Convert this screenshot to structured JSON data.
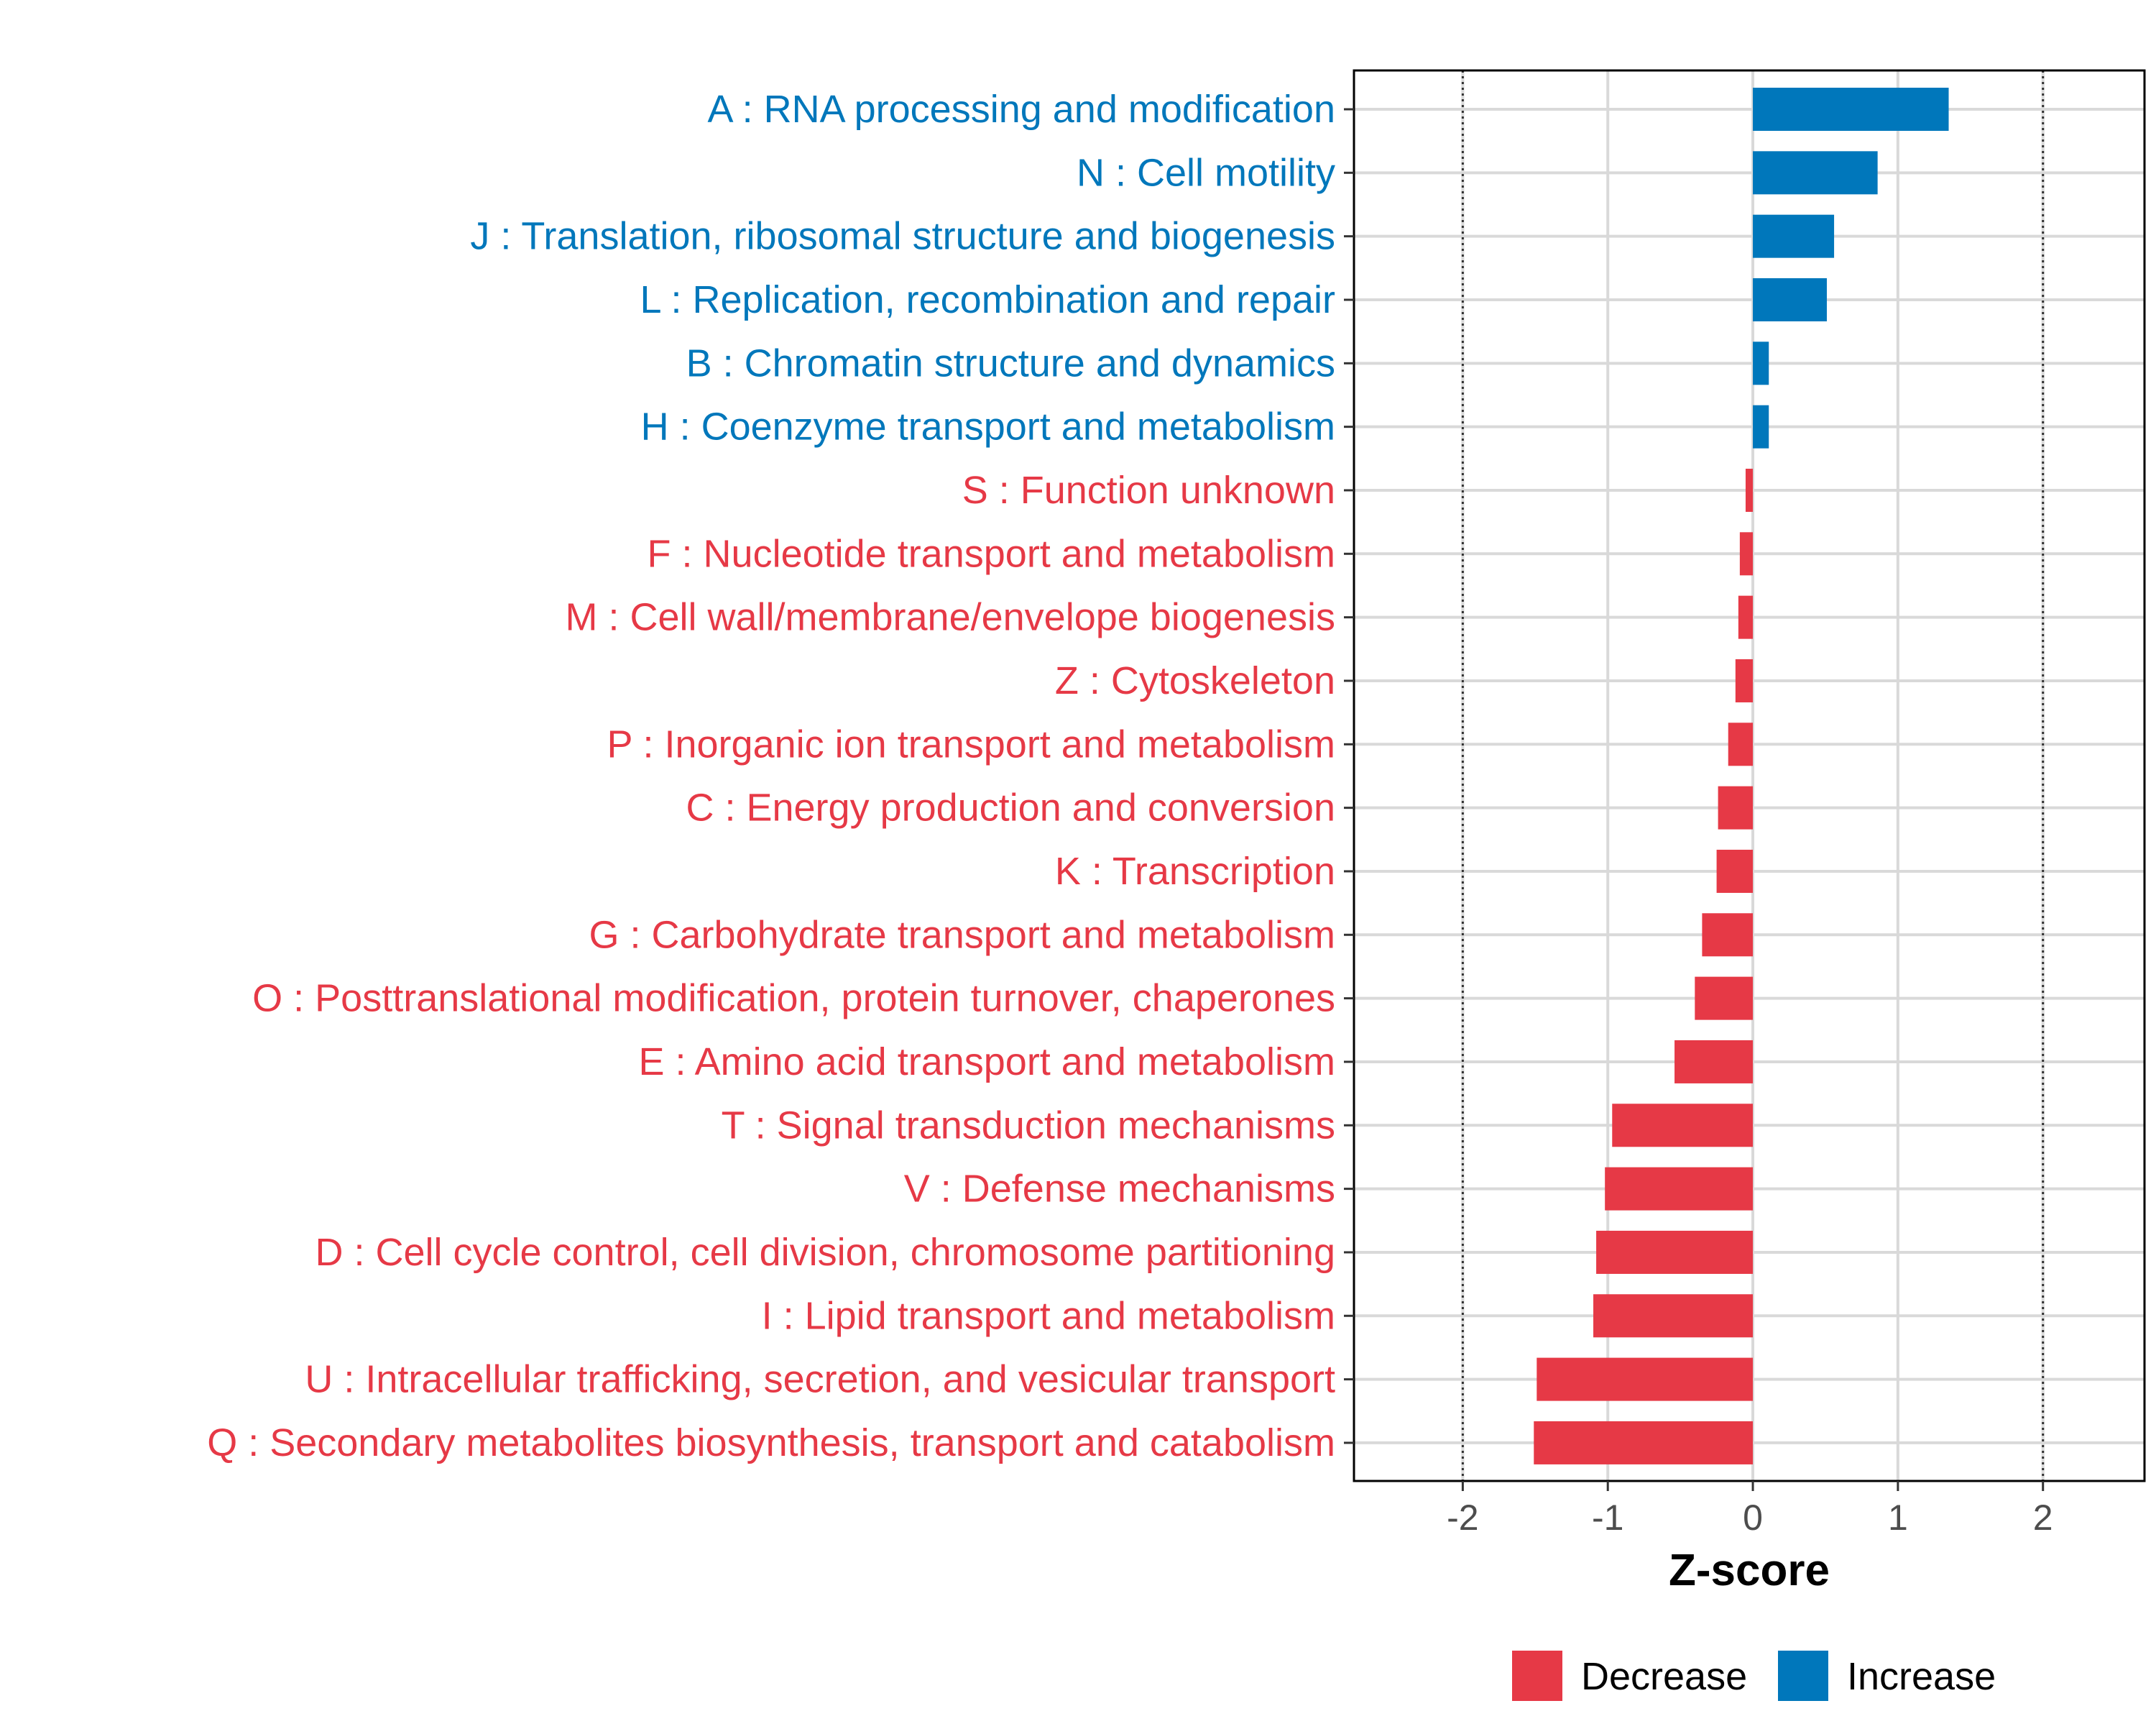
{
  "chart_data": {
    "type": "bar",
    "orientation": "horizontal",
    "xlabel": "Z-score",
    "xlim": [
      -2.75,
      2.7
    ],
    "xticks": [
      -2,
      -1,
      0,
      1,
      2
    ],
    "tick_labels": [
      "-2",
      "-1",
      "0",
      "1",
      "2"
    ],
    "reference_lines": [
      -2,
      2
    ],
    "grid": true,
    "colors": {
      "Decrease": "#E63946",
      "Increase": "#0077BB"
    },
    "legend": {
      "position": "bottom",
      "entries": [
        {
          "label": "Decrease",
          "color": "#E63946"
        },
        {
          "label": "Increase",
          "color": "#0077BB"
        }
      ]
    },
    "categories": [
      {
        "label": "A : RNA processing and modification",
        "value": 1.35,
        "group": "Increase"
      },
      {
        "label": "N : Cell motility",
        "value": 0.86,
        "group": "Increase"
      },
      {
        "label": "J : Translation, ribosomal structure and biogenesis",
        "value": 0.56,
        "group": "Increase"
      },
      {
        "label": "L : Replication, recombination and repair",
        "value": 0.51,
        "group": "Increase"
      },
      {
        "label": "B : Chromatin structure and dynamics",
        "value": 0.11,
        "group": "Increase"
      },
      {
        "label": "H : Coenzyme transport and metabolism",
        "value": 0.11,
        "group": "Increase"
      },
      {
        "label": "S : Function unknown",
        "value": -0.05,
        "group": "Decrease"
      },
      {
        "label": "F : Nucleotide transport and metabolism",
        "value": -0.09,
        "group": "Decrease"
      },
      {
        "label": "M : Cell wall/membrane/envelope biogenesis",
        "value": -0.1,
        "group": "Decrease"
      },
      {
        "label": "Z : Cytoskeleton",
        "value": -0.12,
        "group": "Decrease"
      },
      {
        "label": "P : Inorganic ion transport and metabolism",
        "value": -0.17,
        "group": "Decrease"
      },
      {
        "label": "C : Energy production and conversion",
        "value": -0.24,
        "group": "Decrease"
      },
      {
        "label": "K : Transcription",
        "value": -0.25,
        "group": "Decrease"
      },
      {
        "label": "G : Carbohydrate transport and metabolism",
        "value": -0.35,
        "group": "Decrease"
      },
      {
        "label": "O : Posttranslational modification, protein turnover, chaperones",
        "value": -0.4,
        "group": "Decrease"
      },
      {
        "label": "E : Amino acid transport and metabolism",
        "value": -0.54,
        "group": "Decrease"
      },
      {
        "label": "T : Signal transduction mechanisms",
        "value": -0.97,
        "group": "Decrease"
      },
      {
        "label": "V : Defense mechanisms",
        "value": -1.02,
        "group": "Decrease"
      },
      {
        "label": "D : Cell cycle control, cell division, chromosome partitioning",
        "value": -1.08,
        "group": "Decrease"
      },
      {
        "label": "I : Lipid transport and metabolism",
        "value": -1.1,
        "group": "Decrease"
      },
      {
        "label": "U : Intracellular trafficking, secretion, and vesicular transport",
        "value": -1.49,
        "group": "Decrease"
      },
      {
        "label": "Q : Secondary metabolites biosynthesis, transport and catabolism",
        "value": -1.51,
        "group": "Decrease"
      }
    ]
  }
}
